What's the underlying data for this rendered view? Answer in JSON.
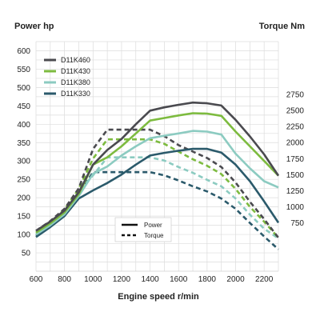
{
  "chart_data": {
    "type": "line",
    "left_axis_title": "Power hp",
    "right_axis_title": "Torque Nm",
    "xlabel": "Engine speed r/min",
    "x_ticks": [
      600,
      800,
      1000,
      1200,
      1400,
      1600,
      1800,
      2000,
      2200
    ],
    "xlim": [
      600,
      2300
    ],
    "power_ticks": [
      50,
      100,
      150,
      200,
      250,
      300,
      350,
      400,
      450,
      500,
      550,
      600
    ],
    "power_lim": [
      0,
      625
    ],
    "torque_ticks": [
      750,
      1000,
      1250,
      1500,
      1750,
      2000,
      2250,
      2500,
      2750
    ],
    "torque_lim": [
      0,
      3570
    ],
    "grid": true,
    "legend_position": "top-left",
    "style_legend": {
      "solid_label": "Power",
      "dashed_label": "Torque"
    },
    "x": [
      600,
      700,
      800,
      900,
      1000,
      1100,
      1200,
      1300,
      1400,
      1500,
      1600,
      1700,
      1800,
      1900,
      2000,
      2100,
      2200,
      2300
    ],
    "series": [
      {
        "name": "D11K460",
        "color": "#4a4a4f",
        "power": [
          110,
          135,
          165,
          215,
          290,
          330,
          360,
          400,
          437,
          446,
          453,
          459,
          457,
          451,
          412,
          367,
          318,
          260
        ],
        "torque": [
          630,
          780,
          970,
          1290,
          1900,
          2200,
          2200,
          2200,
          2200,
          2100,
          1960,
          1860,
          1760,
          1620,
          1380,
          1080,
          810,
          520
        ]
      },
      {
        "name": "D11K430",
        "color": "#7dbb3f",
        "power": [
          105,
          130,
          160,
          210,
          290,
          310,
          340,
          375,
          410,
          417,
          424,
          430,
          429,
          423,
          380,
          340,
          300,
          260
        ],
        "torque": [
          600,
          750,
          960,
          1280,
          1750,
          2050,
          2050,
          2050,
          2050,
          1980,
          1860,
          1740,
          1640,
          1510,
          1280,
          1000,
          770,
          520
        ]
      },
      {
        "name": "D11K380",
        "color": "#8ccbc1",
        "power": [
          100,
          125,
          155,
          205,
          265,
          285,
          315,
          340,
          362,
          369,
          375,
          382,
          380,
          372,
          320,
          280,
          245,
          228
        ],
        "torque": [
          580,
          730,
          930,
          1240,
          1490,
          1770,
          1770,
          1770,
          1770,
          1720,
          1620,
          1530,
          1420,
          1320,
          1130,
          880,
          660,
          510
        ]
      },
      {
        "name": "D11K330",
        "color": "#2b5a6b",
        "power": [
          93,
          120,
          150,
          198,
          220,
          240,
          263,
          290,
          315,
          322,
          328,
          333,
          333,
          323,
          290,
          245,
          190,
          132
        ],
        "torque": [
          550,
          700,
          900,
          1210,
          1540,
          1540,
          1540,
          1540,
          1540,
          1490,
          1410,
          1320,
          1240,
          1130,
          970,
          750,
          540,
          340
        ]
      }
    ]
  }
}
